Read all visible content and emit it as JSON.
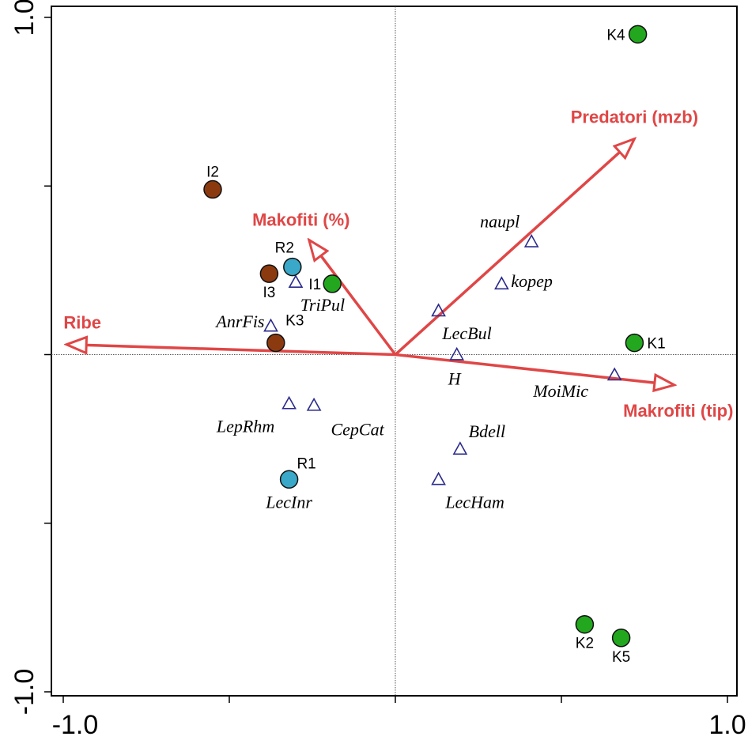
{
  "chart_data": {
    "type": "scatter",
    "title": "",
    "xlabel": "",
    "ylabel": "",
    "xlim": [
      -1.0,
      1.0
    ],
    "ylim": [
      -1.0,
      1.0
    ],
    "x_tick_labels": [
      "-1.0",
      "1.0"
    ],
    "y_tick_labels": [
      "-1.0",
      "1.0"
    ],
    "grid": false,
    "reference_lines": "dotted lines at x=0 and y=0",
    "legend": "none",
    "colors": {
      "axis": "#000000",
      "env_arrow": "#e04646",
      "species_marker": "#2b2b8c",
      "site_green": "#22a71e",
      "site_brown": "#8b3a10",
      "site_blue": "#3aa8c8"
    },
    "sites": [
      {
        "label": "K4",
        "x": 0.73,
        "y": 0.95,
        "group": "green"
      },
      {
        "label": "I2",
        "x": -0.55,
        "y": 0.49,
        "group": "brown"
      },
      {
        "label": "R2",
        "x": -0.31,
        "y": 0.26,
        "group": "blue"
      },
      {
        "label": "I3",
        "x": -0.38,
        "y": 0.24,
        "group": "brown"
      },
      {
        "label": "I1",
        "x": -0.19,
        "y": 0.21,
        "group": "green"
      },
      {
        "label": "K3",
        "x": -0.36,
        "y": 0.035,
        "group": "brown"
      },
      {
        "label": "K1",
        "x": 0.72,
        "y": 0.035,
        "group": "green"
      },
      {
        "label": "R1",
        "x": -0.32,
        "y": -0.37,
        "group": "blue"
      },
      {
        "label": "K2",
        "x": 0.57,
        "y": -0.8,
        "group": "green"
      },
      {
        "label": "K5",
        "x": 0.68,
        "y": -0.84,
        "group": "green"
      }
    ],
    "species": [
      {
        "label": "naupl",
        "x": 0.41,
        "y": 0.335
      },
      {
        "label": "kopep",
        "x": 0.32,
        "y": 0.21
      },
      {
        "label": "TriPul",
        "x": -0.3,
        "y": 0.215
      },
      {
        "label": "AnrFis",
        "x": -0.375,
        "y": 0.085
      },
      {
        "label": "LecBul",
        "x": 0.13,
        "y": 0.13
      },
      {
        "label": "H",
        "x": 0.185,
        "y": 0.0
      },
      {
        "label": "MoiMic",
        "x": 0.66,
        "y": -0.06
      },
      {
        "label": "LepRhm",
        "x": -0.32,
        "y": -0.145
      },
      {
        "label": "CepCat",
        "x": -0.245,
        "y": -0.15
      },
      {
        "label": "Bdell",
        "x": 0.195,
        "y": -0.28
      },
      {
        "label": "LecHam",
        "x": 0.13,
        "y": -0.37
      },
      {
        "label": "LecInr",
        "x": -0.32,
        "y": -0.37
      }
    ],
    "environmental_vectors": [
      {
        "label": "Predatori (mzb)",
        "x": 0.72,
        "y": 0.64
      },
      {
        "label": "Makofiti (%)",
        "x": -0.26,
        "y": 0.34
      },
      {
        "label": "Ribe",
        "x": -0.99,
        "y": 0.03
      },
      {
        "label": "Makrofiti (tip)",
        "x": 0.84,
        "y": -0.09
      }
    ]
  }
}
